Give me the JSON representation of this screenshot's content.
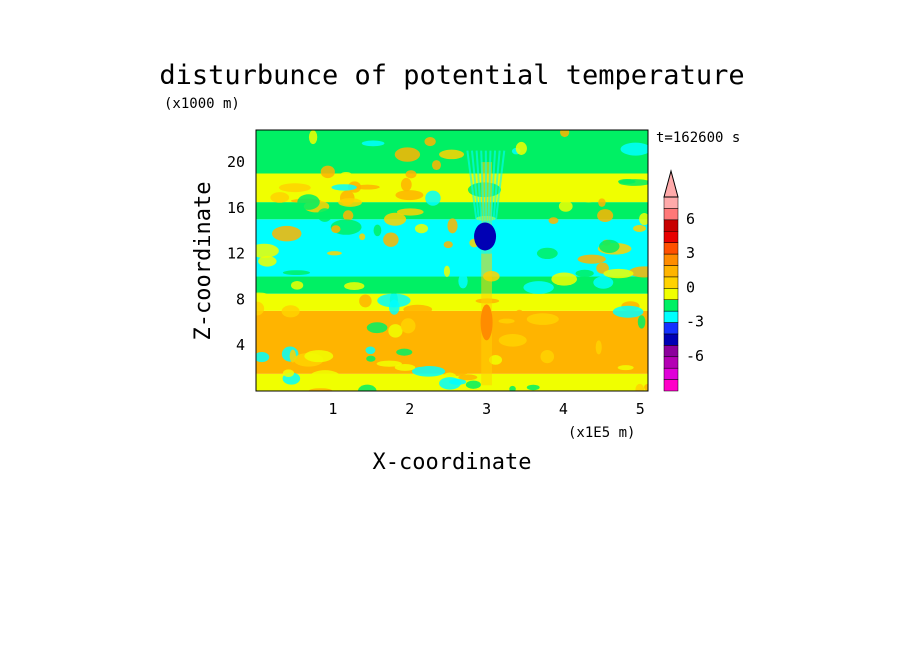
{
  "chart_data": {
    "type": "heatmap",
    "title": "disturbunce of potential temperature",
    "xlabel": "X-coordinate",
    "ylabel": "Z-coordinate",
    "x_unit": "(x1E5 m)",
    "y_unit": "(x1000 m)",
    "time_label": "t=162600 s",
    "x_ticks": [
      1,
      2,
      3,
      4,
      5
    ],
    "y_ticks": [
      4,
      8,
      12,
      16,
      20
    ],
    "xlim": [
      0,
      5.1
    ],
    "ylim": [
      0,
      22.8
    ],
    "colorbar": {
      "levels": [
        -9,
        -8,
        -7,
        -6,
        -5,
        -4,
        -3,
        -2,
        -1,
        0,
        1,
        2,
        3,
        4,
        5,
        6,
        7,
        8
      ],
      "tick_labels": [
        "6",
        "3",
        "0",
        "-3",
        "-6"
      ],
      "tick_values": [
        6,
        3,
        0,
        -3,
        -6
      ],
      "extend": "max",
      "colors": [
        "#ff00c8",
        "#e000d8",
        "#b400b4",
        "#8c009c",
        "#0000b4",
        "#1432ff",
        "#00ffff",
        "#00f064",
        "#f0ff00",
        "#ffd200",
        "#ffb400",
        "#ff8c00",
        "#ff5000",
        "#e80000",
        "#c80000",
        "#ff7878",
        "#ffaaaa"
      ]
    },
    "layers": [
      {
        "z": [
          0,
          1.5
        ],
        "level": "0 to 1",
        "color": "#f0ff00"
      },
      {
        "z": [
          1.5,
          7
        ],
        "level": "1 to 3",
        "color": "#ffb400"
      },
      {
        "z": [
          7,
          8.5
        ],
        "level": "0 to 1",
        "color": "#f0ff00"
      },
      {
        "z": [
          8.5,
          10
        ],
        "level": "-1 to 0",
        "color": "#00f064"
      },
      {
        "z": [
          10,
          15
        ],
        "level": "-2 to -1",
        "color": "#00ffff"
      },
      {
        "z": [
          15,
          16.5
        ],
        "level": "-1 to 0",
        "color": "#00f064"
      },
      {
        "z": [
          16.5,
          19
        ],
        "level": "0 to 2",
        "color": "#f0ff00"
      },
      {
        "z": [
          19,
          22.8
        ],
        "level": "-1 to 1",
        "color": "#00f064"
      }
    ],
    "features": [
      {
        "x": 2.98,
        "z": 13.5,
        "value": -4,
        "color": "#0000b4",
        "note": "cold core"
      },
      {
        "x": 3.0,
        "z": 6.0,
        "value": 3,
        "color": "#ff8c00",
        "note": "warm column"
      }
    ]
  }
}
